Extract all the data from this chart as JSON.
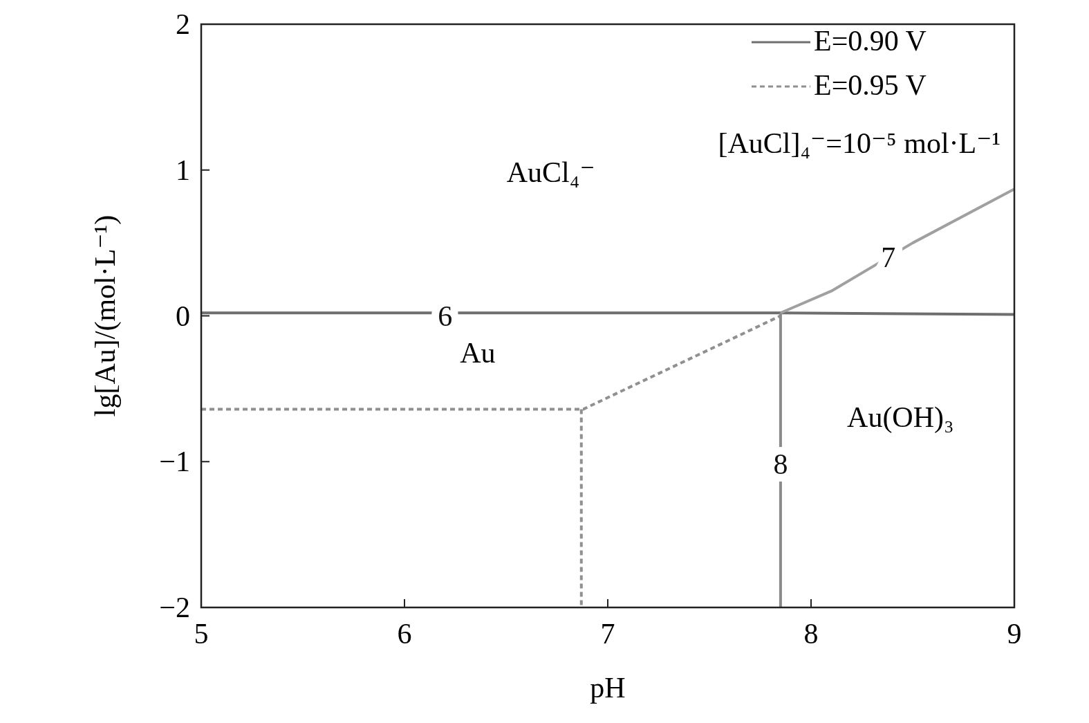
{
  "chart_data": {
    "type": "line",
    "xlabel": "pH",
    "ylabel": "lg[Au]/(mol·L⁻¹)",
    "xlim": [
      5,
      9
    ],
    "ylim": [
      -2,
      2
    ],
    "xticks": [
      5,
      6,
      7,
      8,
      9
    ],
    "yticks": [
      {
        "value": -2,
        "label": "−2"
      },
      {
        "value": -1,
        "label": "−1"
      },
      0,
      1,
      2
    ],
    "grid": false,
    "legend": "top right",
    "marker": "none",
    "series": [
      {
        "name": "E=0.90 V",
        "color": "#6e6e6e",
        "line_style": "solid",
        "x": [
          5,
          7.85,
          9
        ],
        "values": [
          0.02,
          0.02,
          0.01
        ]
      },
      {
        "name": "E=0.95 V",
        "color": "#909090",
        "line_style": "dashed",
        "x": [
          5,
          6.88,
          7.85
        ],
        "values": [
          -0.64,
          -0.64,
          0
        ]
      },
      {
        "color": "#909090",
        "line_style": "dashed",
        "x": [
          6.87,
          6.87
        ],
        "values": [
          -0.64,
          -2
        ]
      },
      {
        "color": "#8a8a8a",
        "line_style": "solid",
        "x": [
          7.85,
          7.85
        ],
        "values": [
          0.02,
          -2
        ]
      },
      {
        "color": "#a0a0a0",
        "line_style": "solid",
        "x": [
          7.85,
          8.1,
          8.5,
          9
        ],
        "values": [
          0.02,
          0.17,
          0.5,
          0.87
        ]
      }
    ],
    "annotations": [
      {
        "text": "6",
        "x": 6.2,
        "y": 0
      },
      {
        "text": "7",
        "x": 8.38,
        "y": 0.4
      },
      {
        "text": "8",
        "x": 7.85,
        "y": -1.02
      },
      "AuCl₄⁻",
      "Au",
      "Au(OH)₃",
      "[AuCl]₄⁻=10⁻⁵ mol·L⁻¹"
    ]
  }
}
